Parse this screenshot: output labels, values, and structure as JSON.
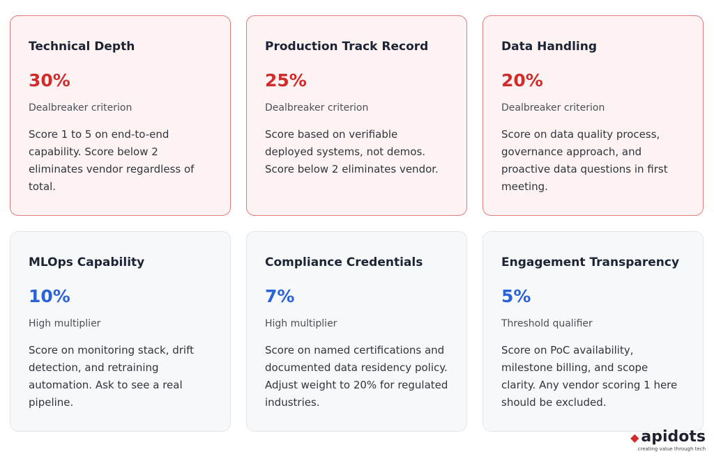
{
  "cards": [
    {
      "title": "Technical Depth",
      "weight": "30%",
      "tag": "Dealbreaker criterion",
      "description": "Score 1 to 5 on end-to-end capability. Score below 2 eliminates vendor regardless of total."
    },
    {
      "title": "Production Track Record",
      "weight": "25%",
      "tag": "Dealbreaker criterion",
      "description": "Score based on verifiable deployed systems, not demos. Score below 2 eliminates vendor."
    },
    {
      "title": "Data Handling",
      "weight": "20%",
      "tag": "Dealbreaker criterion",
      "description": "Score on data quality process, governance approach, and proactive data questions in first meeting."
    },
    {
      "title": "MLOps Capability",
      "weight": "10%",
      "tag": "High multiplier",
      "description": "Score on monitoring stack, drift detection, and retraining automation. Ask to see a real pipeline."
    },
    {
      "title": "Compliance Credentials",
      "weight": "7%",
      "tag": "High multiplier",
      "description": "Score on named certifications and documented data residency policy. Adjust weight to 20% for regulated industries."
    },
    {
      "title": "Engagement Transparency",
      "weight": "5%",
      "tag": "Threshold qualifier",
      "description": "Score on PoC availability, milestone billing, and scope clarity. Any vendor scoring 1 here should be excluded."
    }
  ],
  "logo": {
    "name": "apidots",
    "tagline": "creating value through tech"
  }
}
